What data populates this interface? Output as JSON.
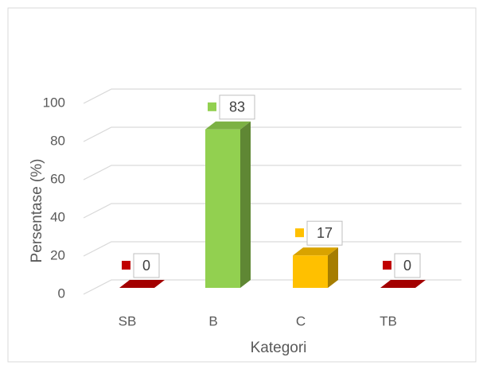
{
  "chart_data": {
    "type": "bar3d",
    "x_label": "Kategori",
    "y_label": "Persentase (%)",
    "categories": [
      "SB",
      "B",
      "C",
      "TB"
    ],
    "values": [
      0,
      83,
      17,
      0
    ],
    "colors": [
      "#c00000",
      "#92d050",
      "#ffc000",
      "#c00000"
    ],
    "ylim": [
      0,
      100
    ],
    "yticks": [
      0,
      20,
      40,
      60,
      80,
      100
    ],
    "grid": true
  }
}
